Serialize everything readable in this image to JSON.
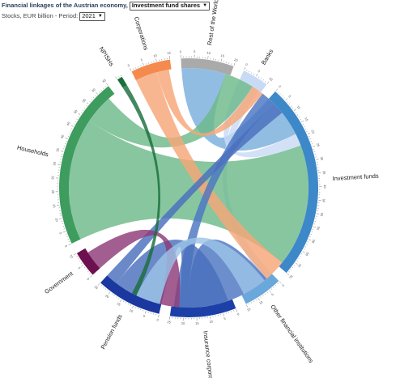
{
  "header": {
    "title": "Financial linkages of the Austrian economy,",
    "instrument_selected": "Investment fund shares",
    "period_prefix": "Stocks, EUR billion - Period:",
    "period_selected": "2021"
  },
  "chart_data": {
    "type": "chord",
    "title": "Financial linkages of the Austrian economy,",
    "unit": "Stocks, EUR billion",
    "period": "2021",
    "instrument": "Investment fund shares",
    "segments": [
      {
        "name": "Rest of the World",
        "value": 20,
        "color": "#7aafdc",
        "band": "#aaaaaa"
      },
      {
        "name": "Banks",
        "value": 10,
        "color": "#c9daf5",
        "band": "#c9daf5"
      },
      {
        "name": "Investment funds",
        "value": 75,
        "color": "#73a9d9",
        "band": "#3d88c9"
      },
      {
        "name": "Other financial institutions",
        "value": 15,
        "color": "#9cc3e6",
        "band": "#6aa7da"
      },
      {
        "name": "Insurance corporations",
        "value": 25,
        "color": "#4c75c2",
        "band": "#1c3fa8"
      },
      {
        "name": "Pension funds",
        "value": 25,
        "color": "#4a6fbd",
        "band": "#1a38a0"
      },
      {
        "name": "Government",
        "value": 10,
        "color": "#8e3a78",
        "band": "#6d104f"
      },
      {
        "name": "Households",
        "value": 65,
        "color": "#6cb98a",
        "band": "#3e9c5f"
      },
      {
        "name": "NPISHs",
        "value": 2,
        "color": "#1a6e3a",
        "band": "#1a6e3a"
      },
      {
        "name": "Corporations",
        "value": 15,
        "color": "#f7a677",
        "band": "#f58a4e"
      }
    ],
    "flows": [
      {
        "from": "Rest of the World",
        "to": "Investment funds",
        "value": 18
      },
      {
        "from": "Banks",
        "to": "Investment funds",
        "value": 5
      },
      {
        "from": "Banks",
        "to": "Other financial institutions",
        "value": 4
      },
      {
        "from": "Households",
        "to": "Investment funds",
        "value": 50
      },
      {
        "from": "Households",
        "to": "Rest of the World",
        "value": 12
      },
      {
        "from": "Corporations",
        "to": "Investment funds",
        "value": 9
      },
      {
        "from": "Corporations",
        "to": "Rest of the World",
        "value": 5
      },
      {
        "from": "Insurance corporations",
        "to": "Investment funds",
        "value": 18
      },
      {
        "from": "Insurance corporations",
        "to": "Rest of the World",
        "value": 6
      },
      {
        "from": "Pension funds",
        "to": "Investment funds",
        "value": 20
      },
      {
        "from": "Pension funds",
        "to": "Rest of the World",
        "value": 5
      },
      {
        "from": "Government",
        "to": "Investment funds",
        "value": 8
      },
      {
        "from": "Other financial institutions",
        "to": "Investment funds",
        "value": 10
      },
      {
        "from": "NPISHs",
        "to": "Investment funds",
        "value": 2
      }
    ]
  }
}
